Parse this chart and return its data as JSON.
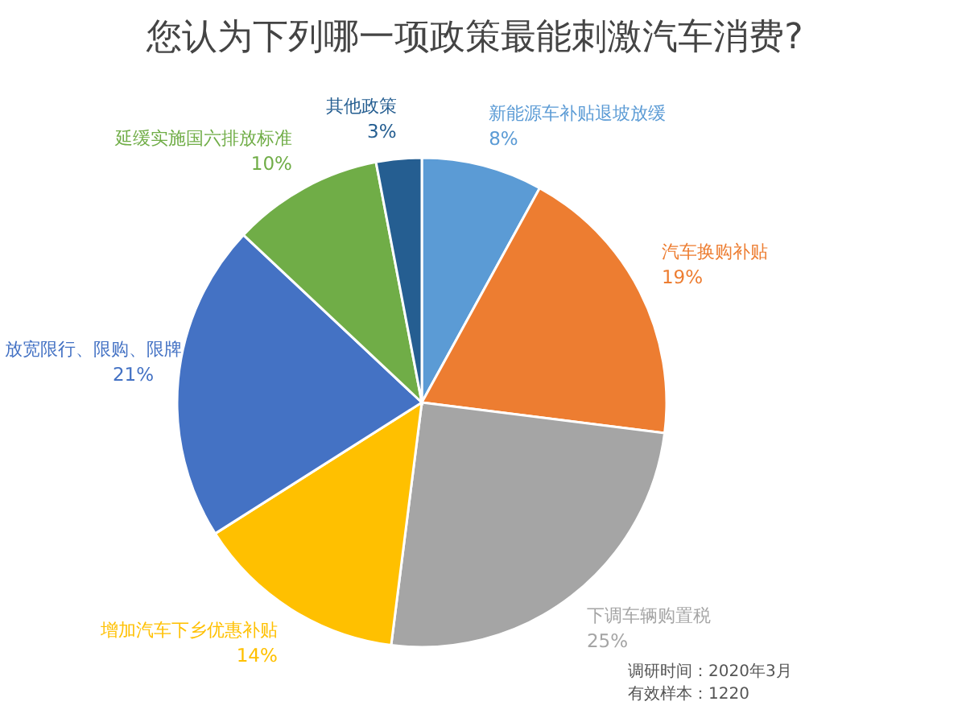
{
  "chart_data": {
    "type": "pie",
    "title": "您认为下列哪一项政策最能刺激汽车消费?",
    "categories": [
      "新能源车补贴退坡放缓",
      "汽车换购补贴",
      "下调车辆购置税",
      "增加汽车下乡优惠补贴",
      "放宽限行、限购、限牌",
      "延缓实施国六排放标准",
      "其他政策"
    ],
    "values": [
      8,
      19,
      25,
      14,
      21,
      10,
      3
    ],
    "colors": [
      "#5b9bd5",
      "#ed7d31",
      "#a5a5a5",
      "#ffc000",
      "#4472c4",
      "#70ad47",
      "#255e91"
    ],
    "value_labels": [
      "8%",
      "19%",
      "25%",
      "14%",
      "21%",
      "10%",
      "3%"
    ],
    "annotations": [
      "调研时间：2020年3月",
      "有效样本：1220"
    ]
  }
}
